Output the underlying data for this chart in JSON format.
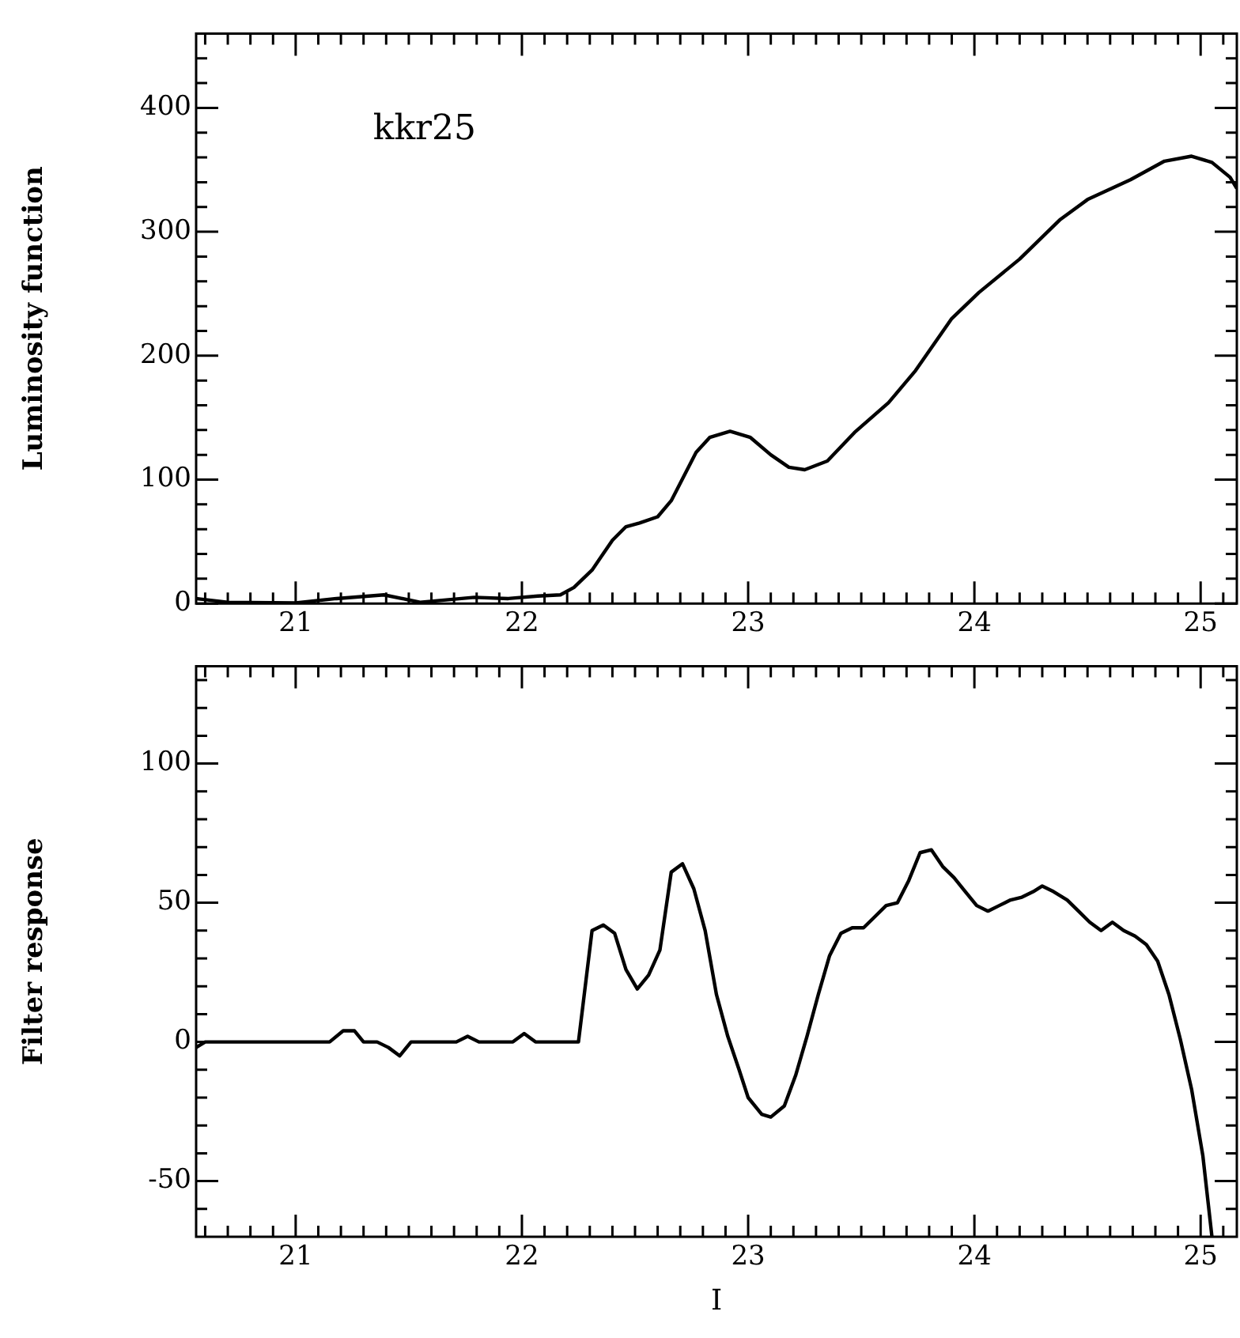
{
  "chart_data": [
    {
      "type": "line",
      "ylabel": "Luminosity function",
      "annotations": [
        "kkr25"
      ],
      "x": [
        20.56,
        20.7,
        21.0,
        21.18,
        21.39,
        21.55,
        21.79,
        21.94,
        22.07,
        22.17,
        22.23,
        22.31,
        22.4,
        22.46,
        22.52,
        22.6,
        22.66,
        22.77,
        22.83,
        22.92,
        23.01,
        23.1,
        23.18,
        23.25,
        23.35,
        23.47,
        23.62,
        23.74,
        23.9,
        24.02,
        24.2,
        24.38,
        24.5,
        24.69,
        24.84,
        24.96,
        25.05,
        25.13,
        25.16
      ],
      "series": [
        {
          "color": "#000000",
          "values": [
            4,
            1,
            0.5,
            4,
            7,
            1,
            5,
            4,
            6,
            7,
            13,
            27,
            51,
            62,
            65,
            70,
            83,
            122,
            134,
            139,
            134,
            120,
            110,
            108,
            115,
            138,
            162,
            188,
            230,
            251,
            278,
            310,
            326,
            342,
            357,
            361,
            356,
            344,
            335
          ]
        }
      ],
      "xlim": [
        20.56,
        25.16
      ],
      "xticks": [
        {
          "value": 20.6,
          "label": null
        },
        {
          "value": 20.7,
          "label": null
        },
        {
          "value": 20.8,
          "label": null
        },
        {
          "value": 20.9,
          "label": null
        },
        21,
        {
          "value": 21.1,
          "label": null
        },
        {
          "value": 21.2,
          "label": null
        },
        {
          "value": 21.3,
          "label": null
        },
        {
          "value": 21.4,
          "label": null
        },
        {
          "value": 21.5,
          "label": null
        },
        {
          "value": 21.6,
          "label": null
        },
        {
          "value": 21.7,
          "label": null
        },
        {
          "value": 21.8,
          "label": null
        },
        {
          "value": 21.9,
          "label": null
        },
        22,
        {
          "value": 22.1,
          "label": null
        },
        {
          "value": 22.2,
          "label": null
        },
        {
          "value": 22.3,
          "label": null
        },
        {
          "value": 22.4,
          "label": null
        },
        {
          "value": 22.5,
          "label": null
        },
        {
          "value": 22.6,
          "label": null
        },
        {
          "value": 22.7,
          "label": null
        },
        {
          "value": 22.8,
          "label": null
        },
        {
          "value": 22.9,
          "label": null
        },
        23,
        {
          "value": 23.1,
          "label": null
        },
        {
          "value": 23.2,
          "label": null
        },
        {
          "value": 23.3,
          "label": null
        },
        {
          "value": 23.4,
          "label": null
        },
        {
          "value": 23.5,
          "label": null
        },
        {
          "value": 23.6,
          "label": null
        },
        {
          "value": 23.7,
          "label": null
        },
        {
          "value": 23.8,
          "label": null
        },
        {
          "value": 23.9,
          "label": null
        },
        24,
        {
          "value": 24.1,
          "label": null
        },
        {
          "value": 24.2,
          "label": null
        },
        {
          "value": 24.3,
          "label": null
        },
        {
          "value": 24.4,
          "label": null
        },
        {
          "value": 24.5,
          "label": null
        },
        {
          "value": 24.6,
          "label": null
        },
        {
          "value": 24.7,
          "label": null
        },
        {
          "value": 24.8,
          "label": null
        },
        {
          "value": 24.9,
          "label": null
        },
        25,
        {
          "value": 25.1,
          "label": null
        }
      ],
      "ylim": [
        0,
        460
      ],
      "yticks": [
        0,
        {
          "value": 20,
          "label": null
        },
        {
          "value": 40,
          "label": null
        },
        {
          "value": 60,
          "label": null
        },
        {
          "value": 80,
          "label": null
        },
        100,
        {
          "value": 120,
          "label": null
        },
        {
          "value": 140,
          "label": null
        },
        {
          "value": 160,
          "label": null
        },
        {
          "value": 180,
          "label": null
        },
        200,
        {
          "value": 220,
          "label": null
        },
        {
          "value": 240,
          "label": null
        },
        {
          "value": 260,
          "label": null
        },
        {
          "value": 280,
          "label": null
        },
        300,
        {
          "value": 320,
          "label": null
        },
        {
          "value": 340,
          "label": null
        },
        {
          "value": 360,
          "label": null
        },
        {
          "value": 380,
          "label": null
        },
        400,
        {
          "value": 420,
          "label": null
        },
        {
          "value": 440,
          "label": null
        }
      ]
    },
    {
      "type": "line",
      "ylabel": "Filter response",
      "xlabel": "I",
      "x": [
        20.56,
        20.6,
        21.15,
        21.21,
        21.26,
        21.3,
        21.36,
        21.41,
        21.46,
        21.51,
        21.71,
        21.76,
        21.81,
        21.96,
        22.01,
        22.06,
        22.11,
        22.25,
        22.31,
        22.36,
        22.41,
        22.46,
        22.51,
        22.56,
        22.61,
        22.66,
        22.71,
        22.76,
        22.81,
        22.86,
        22.91,
        22.96,
        23.0,
        23.06,
        23.1,
        23.16,
        23.21,
        23.26,
        23.31,
        23.36,
        23.41,
        23.46,
        23.51,
        23.56,
        23.61,
        23.66,
        23.71,
        23.76,
        23.81,
        23.86,
        23.91,
        23.96,
        24.01,
        24.06,
        24.11,
        24.16,
        24.21,
        24.26,
        24.3,
        24.35,
        24.41,
        24.46,
        24.51,
        24.56,
        24.61,
        24.66,
        24.71,
        24.76,
        24.81,
        24.86,
        24.91,
        24.96,
        25.01,
        25.05
      ],
      "series": [
        {
          "color": "#000000",
          "values": [
            -2,
            0,
            0,
            4,
            4,
            0,
            0,
            -2,
            -5,
            0,
            0,
            2,
            0,
            0,
            3,
            0,
            0,
            0,
            40,
            42,
            39,
            26,
            19,
            24,
            33,
            61,
            64,
            55,
            40,
            17,
            2,
            -10,
            -20,
            -26,
            -27,
            -23,
            -12,
            2,
            17,
            31,
            39,
            41,
            41,
            45,
            49,
            50,
            58,
            68,
            69,
            63,
            59,
            54,
            49,
            47,
            49,
            51,
            52,
            54,
            56,
            54,
            51,
            47,
            43,
            40,
            43,
            40,
            38,
            35,
            29,
            17,
            1,
            -17,
            -41,
            -70
          ]
        }
      ],
      "xlim": [
        20.56,
        25.16
      ],
      "xticks": [
        {
          "value": 20.6,
          "label": null
        },
        {
          "value": 20.7,
          "label": null
        },
        {
          "value": 20.8,
          "label": null
        },
        {
          "value": 20.9,
          "label": null
        },
        21,
        {
          "value": 21.1,
          "label": null
        },
        {
          "value": 21.2,
          "label": null
        },
        {
          "value": 21.3,
          "label": null
        },
        {
          "value": 21.4,
          "label": null
        },
        {
          "value": 21.5,
          "label": null
        },
        {
          "value": 21.6,
          "label": null
        },
        {
          "value": 21.7,
          "label": null
        },
        {
          "value": 21.8,
          "label": null
        },
        {
          "value": 21.9,
          "label": null
        },
        22,
        {
          "value": 22.1,
          "label": null
        },
        {
          "value": 22.2,
          "label": null
        },
        {
          "value": 22.3,
          "label": null
        },
        {
          "value": 22.4,
          "label": null
        },
        {
          "value": 22.5,
          "label": null
        },
        {
          "value": 22.6,
          "label": null
        },
        {
          "value": 22.7,
          "label": null
        },
        {
          "value": 22.8,
          "label": null
        },
        {
          "value": 22.9,
          "label": null
        },
        23,
        {
          "value": 23.1,
          "label": null
        },
        {
          "value": 23.2,
          "label": null
        },
        {
          "value": 23.3,
          "label": null
        },
        {
          "value": 23.4,
          "label": null
        },
        {
          "value": 23.5,
          "label": null
        },
        {
          "value": 23.6,
          "label": null
        },
        {
          "value": 23.7,
          "label": null
        },
        {
          "value": 23.8,
          "label": null
        },
        {
          "value": 23.9,
          "label": null
        },
        24,
        {
          "value": 24.1,
          "label": null
        },
        {
          "value": 24.2,
          "label": null
        },
        {
          "value": 24.3,
          "label": null
        },
        {
          "value": 24.4,
          "label": null
        },
        {
          "value": 24.5,
          "label": null
        },
        {
          "value": 24.6,
          "label": null
        },
        {
          "value": 24.7,
          "label": null
        },
        {
          "value": 24.8,
          "label": null
        },
        {
          "value": 24.9,
          "label": null
        },
        25,
        {
          "value": 25.1,
          "label": null
        }
      ],
      "ylim": [
        -70,
        135
      ],
      "yticks": [
        {
          "value": -60,
          "label": null
        },
        -50,
        {
          "value": -40,
          "label": null
        },
        {
          "value": -30,
          "label": null
        },
        {
          "value": -20,
          "label": null
        },
        {
          "value": -10,
          "label": null
        },
        0,
        {
          "value": 10,
          "label": null
        },
        {
          "value": 20,
          "label": null
        },
        {
          "value": 30,
          "label": null
        },
        {
          "value": 40,
          "label": null
        },
        50,
        {
          "value": 60,
          "label": null
        },
        {
          "value": 70,
          "label": null
        },
        {
          "value": 80,
          "label": null
        },
        {
          "value": 90,
          "label": null
        },
        100,
        {
          "value": 110,
          "label": null
        },
        {
          "value": 120,
          "label": null
        },
        {
          "value": 130,
          "label": null
        }
      ]
    }
  ]
}
